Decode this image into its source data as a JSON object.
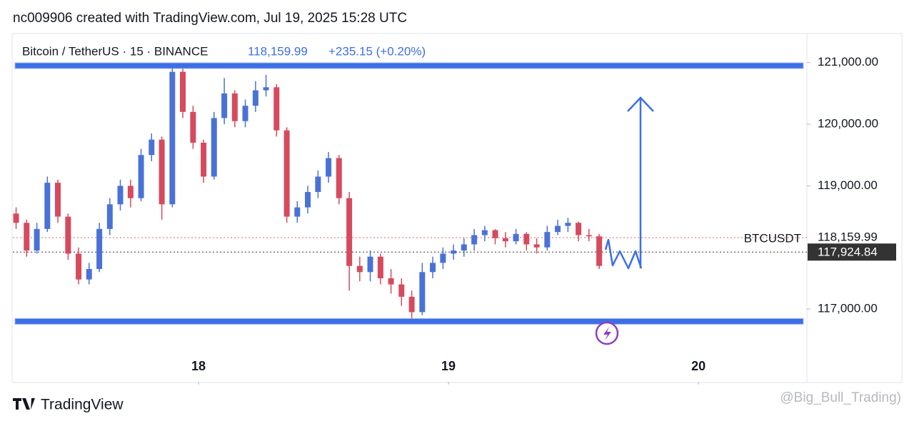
{
  "header": {
    "credit": "nc009906 created with TradingView.com, Jul 19, 2025 15:28 UTC",
    "symbol": "Bitcoin / TetherUS · 15 · BINANCE",
    "price": "118,159.99",
    "change": "+235.15 (+0.20%)"
  },
  "footer": {
    "brand": "TradingView",
    "watermark": "@Big_Bull_Trading)"
  },
  "chart_data": {
    "type": "candlestick",
    "up_color": "#4a72d6",
    "down_color": "#d64a5e",
    "x": [
      17.27,
      17.312,
      17.353,
      17.395,
      17.437,
      17.478,
      17.52,
      17.562,
      17.603,
      17.645,
      17.687,
      17.728,
      17.77,
      17.812,
      17.853,
      17.895,
      17.937,
      17.978,
      18.02,
      18.062,
      18.103,
      18.145,
      18.187,
      18.228,
      18.27,
      18.312,
      18.353,
      18.395,
      18.437,
      18.478,
      18.52,
      18.562,
      18.603,
      18.645,
      18.687,
      18.728,
      18.77,
      18.812,
      18.853,
      18.895,
      18.937,
      18.978,
      19.02,
      19.062,
      19.103,
      19.145,
      19.187,
      19.228,
      19.27,
      19.312,
      19.353,
      19.395,
      19.437,
      19.478,
      19.52,
      19.562,
      19.603
    ],
    "open": [
      118550,
      118400,
      117950,
      118300,
      119050,
      118500,
      117900,
      117480,
      117650,
      118300,
      118700,
      119000,
      118800,
      119500,
      119750,
      118700,
      120850,
      120200,
      119700,
      119150,
      120100,
      120500,
      120050,
      120300,
      120550,
      120600,
      119900,
      118500,
      118650,
      118900,
      119150,
      119450,
      118800,
      117700,
      117600,
      117850,
      117500,
      117400,
      117200,
      116950,
      117600,
      117750,
      117900,
      117950,
      118050,
      118200,
      118280,
      118150,
      118100,
      118220,
      118050,
      118000,
      118250,
      118350,
      118400,
      118200,
      118180
    ],
    "high": [
      118650,
      118450,
      118400,
      119150,
      119100,
      118550,
      118000,
      117750,
      118400,
      118800,
      119100,
      119100,
      119600,
      119850,
      119800,
      120950,
      120900,
      120300,
      119750,
      120200,
      120750,
      120550,
      120400,
      120700,
      120800,
      120650,
      119950,
      118750,
      119000,
      119250,
      119550,
      119500,
      118900,
      117850,
      117950,
      117900,
      117650,
      117500,
      117300,
      117750,
      117850,
      118000,
      118050,
      118150,
      118300,
      118350,
      118300,
      118250,
      118300,
      118250,
      118150,
      118350,
      118450,
      118480,
      118420,
      118300,
      118220
    ],
    "low": [
      118300,
      117850,
      117900,
      118250,
      118400,
      117800,
      117400,
      117400,
      117600,
      118200,
      118600,
      118650,
      118750,
      119400,
      118450,
      118650,
      120100,
      119600,
      119050,
      119100,
      120000,
      119950,
      119950,
      120200,
      120450,
      119800,
      118400,
      118400,
      118550,
      118800,
      119050,
      118700,
      117300,
      117450,
      117450,
      117400,
      117250,
      117050,
      116850,
      116900,
      117500,
      117650,
      117800,
      117850,
      117950,
      118100,
      118050,
      118000,
      118050,
      117950,
      117900,
      117950,
      118200,
      118250,
      118100,
      118100,
      117650
    ],
    "close": [
      118400,
      117950,
      118300,
      119050,
      118500,
      117900,
      117480,
      117650,
      118300,
      118700,
      119000,
      118800,
      119500,
      119750,
      118700,
      120850,
      120200,
      119700,
      119150,
      120100,
      120500,
      120050,
      120300,
      120550,
      120600,
      119900,
      118500,
      118650,
      118900,
      119150,
      119450,
      118800,
      117700,
      117600,
      117850,
      117500,
      117400,
      117200,
      116950,
      117600,
      117750,
      117900,
      117950,
      118050,
      118200,
      118280,
      118150,
      118100,
      118220,
      118050,
      118000,
      118250,
      118350,
      118400,
      118200,
      118180,
      117700
    ],
    "xlim": [
      17.257,
      20.434
    ],
    "xticks": [
      18,
      19,
      20
    ],
    "ylim": [
      115820,
      121460
    ],
    "yticks": [
      {
        "value": 121000,
        "label": "121,000.00"
      },
      {
        "value": 120000,
        "label": "120,000.00"
      },
      {
        "value": 119000,
        "label": "119,000.00"
      },
      {
        "value": 117000,
        "label": "117,000.00"
      }
    ],
    "levels": [
      {
        "value": 120950,
        "color": "#3d6ee6"
      },
      {
        "value": 116800,
        "color": "#3d6ee6"
      }
    ],
    "price_lines": [
      {
        "value": 118159.99,
        "label": "118,159.99",
        "name": "BTCUSDT",
        "color": "#e06666"
      },
      {
        "value": 117924.84,
        "label": "117,924.84",
        "color": "#333333"
      }
    ]
  }
}
